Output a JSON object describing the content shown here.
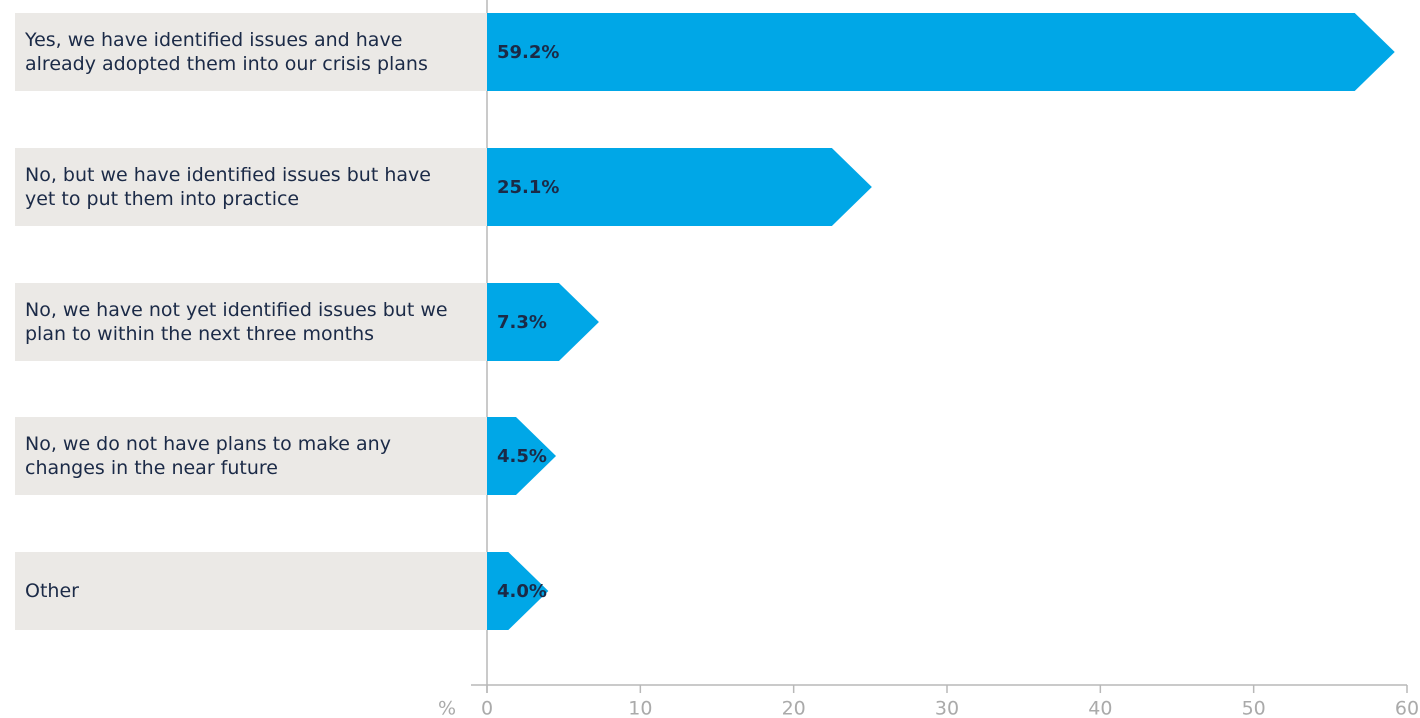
{
  "chart_data": {
    "type": "bar",
    "categories": [
      "Yes, we have identified issues and have already adopted them into our crisis plans",
      "No, but we have identified issues but have yet to put them into practice",
      "No, we have not yet identified issues but we plan to within the next three months",
      "No, we do not have plans to make any changes in the near future",
      "Other"
    ],
    "values": [
      59.2,
      25.1,
      7.3,
      4.5,
      4.0
    ],
    "value_labels": [
      "59.2%",
      "25.1%",
      "7.3%",
      "4.5%",
      "4.0%"
    ],
    "color": "#00a7e7",
    "xlabel": "%",
    "xlim": [
      0,
      60
    ],
    "xticks": [
      0,
      10,
      20,
      30,
      40,
      50,
      60
    ]
  }
}
